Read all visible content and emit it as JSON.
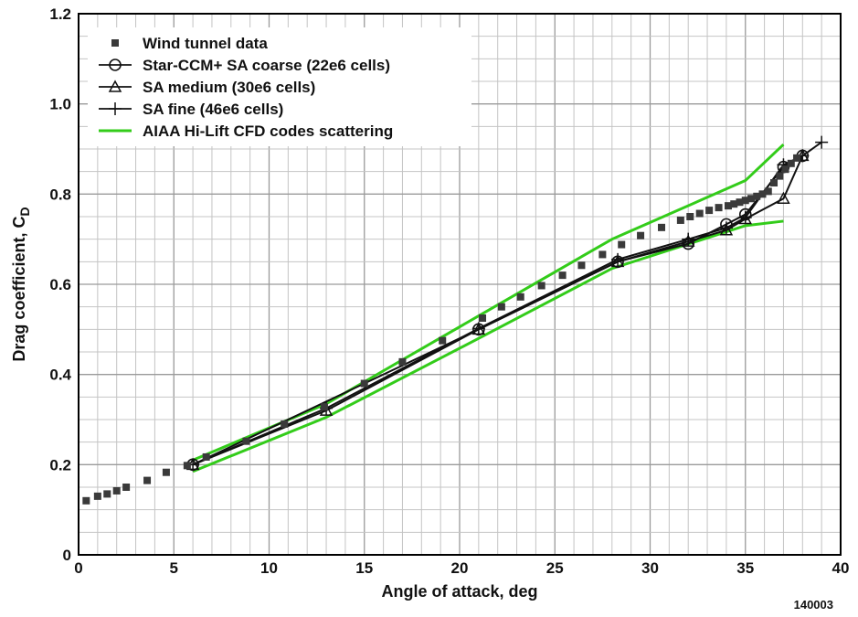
{
  "chart_data": {
    "type": "line",
    "xlabel": "Angle of attack, deg",
    "ylabel": "Drag coefficient, C",
    "ylabel_subscript": "D",
    "xlim": [
      0,
      40
    ],
    "ylim": [
      0,
      1.2
    ],
    "xticks": [
      "0",
      "5",
      "10",
      "15",
      "20",
      "25",
      "30",
      "35",
      "40"
    ],
    "yticks": [
      "0",
      "0.2",
      "0.4",
      "0.6",
      "0.8",
      "1.0",
      "1.2"
    ],
    "grid": true,
    "legend_position": "top-left",
    "figure_id": "140003",
    "series": [
      {
        "name": "Wind tunnel data",
        "style": "square-markers",
        "color": "#3a3a3a",
        "x": [
          0.4,
          1.0,
          1.5,
          2.0,
          2.5,
          3.6,
          4.6,
          5.7,
          6.7,
          8.8,
          10.8,
          12.9,
          15.0,
          17.0,
          19.1,
          21.2,
          22.2,
          23.2,
          24.3,
          25.4,
          26.4,
          27.5,
          28.5,
          29.5,
          30.6,
          31.6,
          32.1,
          32.6,
          33.1,
          33.6,
          34.1,
          34.4,
          34.7,
          35.0,
          35.3,
          35.6,
          35.9,
          36.2,
          36.5,
          36.8,
          37.1,
          37.4,
          37.7
        ],
        "y": [
          0.12,
          0.13,
          0.135,
          0.142,
          0.15,
          0.165,
          0.183,
          0.198,
          0.217,
          0.252,
          0.29,
          0.328,
          0.38,
          0.428,
          0.475,
          0.525,
          0.55,
          0.572,
          0.597,
          0.62,
          0.642,
          0.666,
          0.688,
          0.708,
          0.726,
          0.742,
          0.75,
          0.757,
          0.764,
          0.77,
          0.774,
          0.778,
          0.782,
          0.786,
          0.79,
          0.795,
          0.8,
          0.806,
          0.825,
          0.84,
          0.855,
          0.868,
          0.88
        ]
      },
      {
        "name": "Star-CCM+ SA coarse (22e6 cells)",
        "style": "line-circle",
        "color": "#111111",
        "x": [
          6,
          21,
          28.3,
          32,
          34,
          35,
          37,
          38
        ],
        "y": [
          0.2,
          0.5,
          0.65,
          0.69,
          0.733,
          0.755,
          0.86,
          0.885
        ]
      },
      {
        "name": "SA medium (30e6 cells)",
        "style": "line-triangle",
        "color": "#111111",
        "x": [
          6,
          13,
          21,
          28.3,
          32,
          34,
          35,
          37,
          38
        ],
        "y": [
          0.2,
          0.32,
          0.5,
          0.65,
          0.695,
          0.72,
          0.745,
          0.79,
          0.885
        ]
      },
      {
        "name": "SA fine (46e6 cells)",
        "style": "line-plus",
        "color": "#111111",
        "x": [
          6,
          13,
          21,
          28.3,
          32,
          34,
          35,
          37,
          38,
          39
        ],
        "y": [
          0.2,
          0.325,
          0.502,
          0.655,
          0.7,
          0.725,
          0.748,
          0.865,
          0.885,
          0.915
        ]
      },
      {
        "name": "AIAA Hi-Lift CFD codes scattering",
        "style": "band",
        "color": "#33cc1a",
        "upper": {
          "x": [
            6,
            13,
            21,
            28,
            35,
            37
          ],
          "y": [
            0.21,
            0.335,
            0.53,
            0.7,
            0.83,
            0.91
          ]
        },
        "lower": {
          "x": [
            6,
            13,
            21,
            28,
            35,
            37
          ],
          "y": [
            0.185,
            0.305,
            0.48,
            0.635,
            0.73,
            0.74
          ]
        }
      }
    ]
  }
}
